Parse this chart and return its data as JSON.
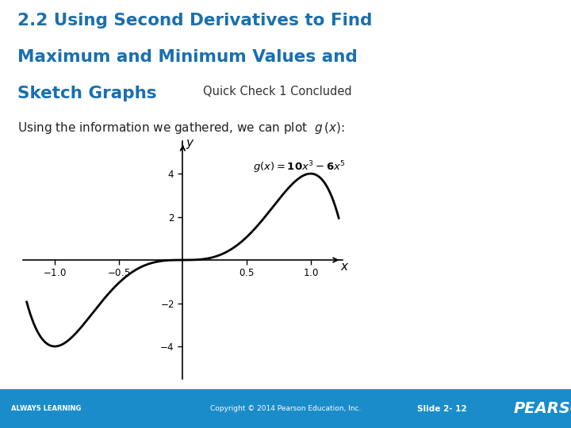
{
  "title_line1": "2.2 Using Second Derivatives to Find",
  "title_line2": "Maximum and Minimum Values and",
  "title_line3": "Sketch Graphs",
  "subtitle": "Quick Check 1 Concluded",
  "body_text": "Using the information we gathered, we can plot",
  "slide_number": "Slide 2- 12",
  "copyright": "Copyright © 2014 Pearson Education, Inc.",
  "always_learning": "ALWAYS LEARNING",
  "pearson": "PEARSON",
  "title_color": "#1a6faf",
  "footer_bg_color": "#1a8cca",
  "footer_text_color": "#ffffff",
  "plot_xlim": [
    -1.25,
    1.25
  ],
  "plot_ylim": [
    -5.5,
    5.5
  ],
  "xticks": [
    -1.0,
    -0.5,
    0.5,
    1.0
  ],
  "yticks": [
    -4,
    -2,
    2,
    4
  ]
}
